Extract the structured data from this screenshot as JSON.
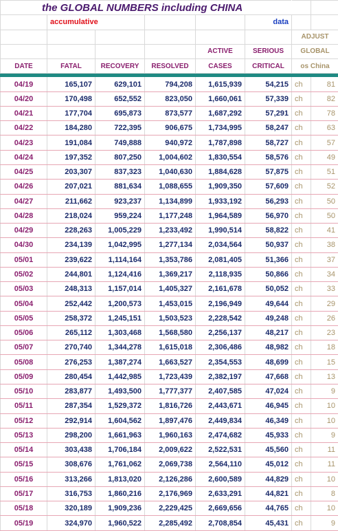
{
  "title": "the GLOBAL NUMBERS including CHINA",
  "subtitle_left": "accumulative",
  "subtitle_right": "data",
  "headers": {
    "adjust": "ADJUST",
    "active_top": "ACTIVE",
    "serious_top": "SERIOUS",
    "global": "GLOBAL",
    "date": "DATE",
    "fatal": "FATAL",
    "recovery": "RECOVERY",
    "resolved": "RESOLVED",
    "active_bottom": "CASES",
    "serious_bottom": "CRITICAL",
    "os_china": "os China"
  },
  "rows": [
    {
      "date": "04/19",
      "fatal": "165,107",
      "recovery": "629,101",
      "resolved": "794,208",
      "active": "1,615,939",
      "serious": "54,215",
      "ch": "ch",
      "adjust": "81"
    },
    {
      "date": "04/20",
      "fatal": "170,498",
      "recovery": "652,552",
      "resolved": "823,050",
      "active": "1,660,061",
      "serious": "57,339",
      "ch": "ch",
      "adjust": "82"
    },
    {
      "date": "04/21",
      "fatal": "177,704",
      "recovery": "695,873",
      "resolved": "873,577",
      "active": "1,687,292",
      "serious": "57,291",
      "ch": "ch",
      "adjust": "78"
    },
    {
      "date": "04/22",
      "fatal": "184,280",
      "recovery": "722,395",
      "resolved": "906,675",
      "active": "1,734,995",
      "serious": "58,247",
      "ch": "ch",
      "adjust": "63"
    },
    {
      "date": "04/23",
      "fatal": "191,084",
      "recovery": "749,888",
      "resolved": "940,972",
      "active": "1,787,898",
      "serious": "58,727",
      "ch": "ch",
      "adjust": "57"
    },
    {
      "date": "04/24",
      "fatal": "197,352",
      "recovery": "807,250",
      "resolved": "1,004,602",
      "active": "1,830,554",
      "serious": "58,576",
      "ch": "ch",
      "adjust": "49"
    },
    {
      "date": "04/25",
      "fatal": "203,307",
      "recovery": "837,323",
      "resolved": "1,040,630",
      "active": "1,884,628",
      "serious": "57,875",
      "ch": "ch",
      "adjust": "51"
    },
    {
      "date": "04/26",
      "fatal": "207,021",
      "recovery": "881,634",
      "resolved": "1,088,655",
      "active": "1,909,350",
      "serious": "57,609",
      "ch": "ch",
      "adjust": "52"
    },
    {
      "date": "04/27",
      "fatal": "211,662",
      "recovery": "923,237",
      "resolved": "1,134,899",
      "active": "1,933,192",
      "serious": "56,293",
      "ch": "ch",
      "adjust": "50"
    },
    {
      "date": "04/28",
      "fatal": "218,024",
      "recovery": "959,224",
      "resolved": "1,177,248",
      "active": "1,964,589",
      "serious": "56,970",
      "ch": "ch",
      "adjust": "50"
    },
    {
      "date": "04/29",
      "fatal": "228,263",
      "recovery": "1,005,229",
      "resolved": "1,233,492",
      "active": "1,990,514",
      "serious": "58,822",
      "ch": "ch",
      "adjust": "41"
    },
    {
      "date": "04/30",
      "fatal": "234,139",
      "recovery": "1,042,995",
      "resolved": "1,277,134",
      "active": "2,034,564",
      "serious": "50,937",
      "ch": "ch",
      "adjust": "38"
    },
    {
      "date": "05/01",
      "fatal": "239,622",
      "recovery": "1,114,164",
      "resolved": "1,353,786",
      "active": "2,081,405",
      "serious": "51,366",
      "ch": "ch",
      "adjust": "37"
    },
    {
      "date": "05/02",
      "fatal": "244,801",
      "recovery": "1,124,416",
      "resolved": "1,369,217",
      "active": "2,118,935",
      "serious": "50,866",
      "ch": "ch",
      "adjust": "34"
    },
    {
      "date": "05/03",
      "fatal": "248,313",
      "recovery": "1,157,014",
      "resolved": "1,405,327",
      "active": "2,161,678",
      "serious": "50,052",
      "ch": "ch",
      "adjust": "33"
    },
    {
      "date": "05/04",
      "fatal": "252,442",
      "recovery": "1,200,573",
      "resolved": "1,453,015",
      "active": "2,196,949",
      "serious": "49,644",
      "ch": "ch",
      "adjust": "29"
    },
    {
      "date": "05/05",
      "fatal": "258,372",
      "recovery": "1,245,151",
      "resolved": "1,503,523",
      "active": "2,228,542",
      "serious": "49,248",
      "ch": "ch",
      "adjust": "26"
    },
    {
      "date": "05/06",
      "fatal": "265,112",
      "recovery": "1,303,468",
      "resolved": "1,568,580",
      "active": "2,256,137",
      "serious": "48,217",
      "ch": "ch",
      "adjust": "23"
    },
    {
      "date": "05/07",
      "fatal": "270,740",
      "recovery": "1,344,278",
      "resolved": "1,615,018",
      "active": "2,306,486",
      "serious": "48,982",
      "ch": "ch",
      "adjust": "18"
    },
    {
      "date": "05/08",
      "fatal": "276,253",
      "recovery": "1,387,274",
      "resolved": "1,663,527",
      "active": "2,354,553",
      "serious": "48,699",
      "ch": "ch",
      "adjust": "15"
    },
    {
      "date": "05/09",
      "fatal": "280,454",
      "recovery": "1,442,985",
      "resolved": "1,723,439",
      "active": "2,382,197",
      "serious": "47,668",
      "ch": "ch",
      "adjust": "13"
    },
    {
      "date": "05/10",
      "fatal": "283,877",
      "recovery": "1,493,500",
      "resolved": "1,777,377",
      "active": "2,407,585",
      "serious": "47,024",
      "ch": "ch",
      "adjust": "9"
    },
    {
      "date": "05/11",
      "fatal": "287,354",
      "recovery": "1,529,372",
      "resolved": "1,816,726",
      "active": "2,443,671",
      "serious": "46,945",
      "ch": "ch",
      "adjust": "10"
    },
    {
      "date": "05/12",
      "fatal": "292,914",
      "recovery": "1,604,562",
      "resolved": "1,897,476",
      "active": "2,449,834",
      "serious": "46,349",
      "ch": "ch",
      "adjust": "10"
    },
    {
      "date": "05/13",
      "fatal": "298,200",
      "recovery": "1,661,963",
      "resolved": "1,960,163",
      "active": "2,474,682",
      "serious": "45,933",
      "ch": "ch",
      "adjust": "9"
    },
    {
      "date": "05/14",
      "fatal": "303,438",
      "recovery": "1,706,184",
      "resolved": "2,009,622",
      "active": "2,522,531",
      "serious": "45,560",
      "ch": "ch",
      "adjust": "11"
    },
    {
      "date": "05/15",
      "fatal": "308,676",
      "recovery": "1,761,062",
      "resolved": "2,069,738",
      "active": "2,564,110",
      "serious": "45,012",
      "ch": "ch",
      "adjust": "11"
    },
    {
      "date": "05/16",
      "fatal": "313,266",
      "recovery": "1,813,020",
      "resolved": "2,126,286",
      "active": "2,600,589",
      "serious": "44,829",
      "ch": "ch",
      "adjust": "10"
    },
    {
      "date": "05/17",
      "fatal": "316,753",
      "recovery": "1,860,216",
      "resolved": "2,176,969",
      "active": "2,633,291",
      "serious": "44,821",
      "ch": "ch",
      "adjust": "8"
    },
    {
      "date": "05/18",
      "fatal": "320,189",
      "recovery": "1,909,236",
      "resolved": "2,229,425",
      "active": "2,669,656",
      "serious": "44,765",
      "ch": "ch",
      "adjust": "10"
    },
    {
      "date": "05/19",
      "fatal": "324,970",
      "recovery": "1,960,522",
      "resolved": "2,285,492",
      "active": "2,708,854",
      "serious": "45,431",
      "ch": "ch",
      "adjust": "9"
    }
  ]
}
